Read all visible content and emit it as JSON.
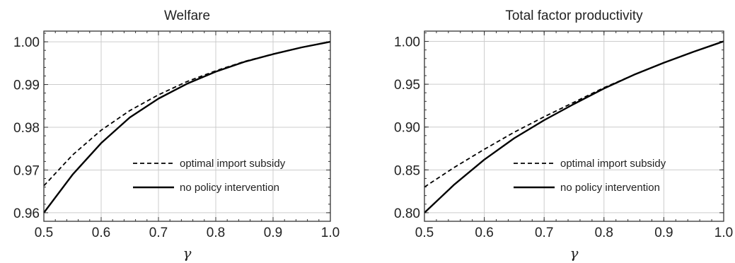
{
  "chart_data": [
    {
      "type": "line",
      "title": "Welfare",
      "xlabel": "γ",
      "ylabel": "",
      "xlim": [
        0.5,
        1.0
      ],
      "ylim": [
        0.958,
        1.0025
      ],
      "xticks": [
        0.5,
        0.6,
        0.7,
        0.8,
        0.9,
        1.0
      ],
      "xtick_labels": [
        "0.5",
        "0.6",
        "0.7",
        "0.8",
        "0.9",
        "1.0"
      ],
      "yticks": [
        0.96,
        0.97,
        0.98,
        0.99,
        1.0
      ],
      "ytick_labels": [
        "0.96",
        "0.97",
        "0.98",
        "0.99",
        "1.00"
      ],
      "grid": true,
      "legend_position": "bottom-right",
      "series": [
        {
          "name": "optimal import subsidy",
          "style": "dashed",
          "color": "#000000",
          "x": [
            0.5,
            0.55,
            0.6,
            0.65,
            0.7,
            0.75,
            0.8,
            0.85,
            0.9,
            0.95,
            1.0
          ],
          "y": [
            0.9663,
            0.9735,
            0.9793,
            0.9839,
            0.9876,
            0.9907,
            0.9932,
            0.9954,
            0.9971,
            0.9987,
            1.0
          ]
        },
        {
          "name": "no policy intervention",
          "style": "solid",
          "color": "#000000",
          "x": [
            0.5,
            0.55,
            0.6,
            0.65,
            0.7,
            0.75,
            0.8,
            0.85,
            0.9,
            0.95,
            1.0
          ],
          "y": [
            0.96,
            0.9689,
            0.9763,
            0.9823,
            0.9867,
            0.9902,
            0.993,
            0.9953,
            0.9971,
            0.9987,
            1.0
          ]
        }
      ]
    },
    {
      "type": "line",
      "title": "Total factor productivity",
      "xlabel": "γ",
      "ylabel": "",
      "xlim": [
        0.5,
        1.0
      ],
      "ylim": [
        0.79,
        1.012
      ],
      "xticks": [
        0.5,
        0.6,
        0.7,
        0.8,
        0.9,
        1.0
      ],
      "xtick_labels": [
        "0.5",
        "0.6",
        "0.7",
        "0.8",
        "0.9",
        "1.0"
      ],
      "yticks": [
        0.8,
        0.85,
        0.9,
        0.95,
        1.0
      ],
      "ytick_labels": [
        "0.80",
        "0.85",
        "0.90",
        "0.95",
        "1.00"
      ],
      "grid": true,
      "legend_position": "bottom-right",
      "series": [
        {
          "name": "optimal import subsidy",
          "style": "dashed",
          "color": "#000000",
          "x": [
            0.5,
            0.55,
            0.6,
            0.65,
            0.7,
            0.75,
            0.8,
            0.85,
            0.9,
            0.95,
            1.0
          ],
          "y": [
            0.83,
            0.853,
            0.874,
            0.894,
            0.912,
            0.929,
            0.946,
            0.961,
            0.975,
            0.988,
            1.0
          ]
        },
        {
          "name": "no policy intervention",
          "style": "solid",
          "color": "#000000",
          "x": [
            0.5,
            0.55,
            0.6,
            0.65,
            0.7,
            0.75,
            0.8,
            0.85,
            0.9,
            0.95,
            1.0
          ],
          "y": [
            0.8,
            0.833,
            0.862,
            0.887,
            0.908,
            0.927,
            0.945,
            0.961,
            0.975,
            0.988,
            1.0
          ]
        }
      ]
    }
  ]
}
